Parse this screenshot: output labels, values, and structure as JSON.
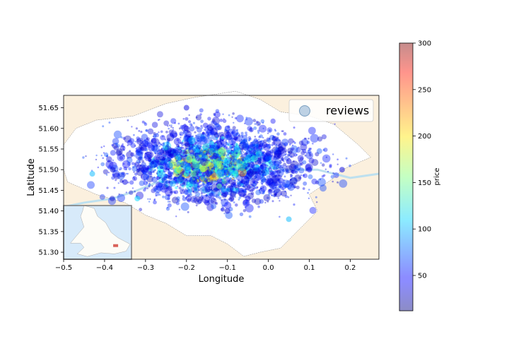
{
  "chart_data": {
    "type": "scatter",
    "title": "",
    "xlabel": "Longitude",
    "ylabel": "Latitude",
    "xlim": [
      -0.5,
      0.27
    ],
    "ylim": [
      51.283,
      51.68
    ],
    "xticks": [
      -0.5,
      -0.4,
      -0.3,
      -0.2,
      -0.1,
      0.0,
      0.1,
      0.2
    ],
    "xtick_labels": [
      "−0.5",
      "−0.4",
      "−0.3",
      "−0.2",
      "−0.1",
      "0.0",
      "0.1",
      "0.2"
    ],
    "yticks": [
      51.3,
      51.35,
      51.4,
      51.45,
      51.5,
      51.55,
      51.6,
      51.65
    ],
    "ytick_labels": [
      "51.30",
      "51.35",
      "51.40",
      "51.45",
      "51.50",
      "51.55",
      "51.60",
      "51.65"
    ],
    "legend": {
      "label": "reviews",
      "placement": "upper right"
    },
    "colorbar": {
      "label": "price",
      "range": [
        12,
        300
      ],
      "ticks": [
        50,
        100,
        150,
        200,
        250,
        300
      ],
      "tick_labels": [
        "50",
        "100",
        "150",
        "200",
        "250",
        "300"
      ],
      "colormap": "jet"
    },
    "background_map": {
      "land_color": "#fbf0de",
      "city_color": "#ffffff",
      "water_color": "#bde0ef"
    },
    "inset_map": {
      "placement": "lower left",
      "sea_color": "#d7eafa",
      "land_color": "#fdfcf7",
      "marker_color": "#d9625a"
    },
    "series": [
      {
        "points": [
          {
            "x": -0.14,
            "y": 51.51,
            "price": 190
          },
          {
            "x": -0.16,
            "y": 51.5,
            "price": 170
          },
          {
            "x": -0.12,
            "y": 51.515,
            "price": 160
          },
          {
            "x": -0.18,
            "y": 51.52,
            "price": 140
          },
          {
            "x": -0.2,
            "y": 51.49,
            "price": 120
          },
          {
            "x": -0.1,
            "y": 51.52,
            "price": 110
          },
          {
            "x": -0.05,
            "y": 51.53,
            "price": 95
          },
          {
            "x": -0.08,
            "y": 51.49,
            "price": 130
          },
          {
            "x": -0.22,
            "y": 51.53,
            "price": 100
          },
          {
            "x": -0.24,
            "y": 51.51,
            "price": 80
          },
          {
            "x": -0.03,
            "y": 51.55,
            "price": 60
          },
          {
            "x": 0.0,
            "y": 51.54,
            "price": 40
          },
          {
            "x": 0.03,
            "y": 51.55,
            "price": 35
          },
          {
            "x": 0.05,
            "y": 51.52,
            "price": 40
          },
          {
            "x": -0.3,
            "y": 51.5,
            "price": 45
          },
          {
            "x": -0.35,
            "y": 51.47,
            "price": 40
          },
          {
            "x": -0.38,
            "y": 51.5,
            "price": 35
          },
          {
            "x": -0.28,
            "y": 51.57,
            "price": 45
          },
          {
            "x": -0.2,
            "y": 51.6,
            "price": 40
          },
          {
            "x": -0.1,
            "y": 51.6,
            "price": 55
          },
          {
            "x": -0.15,
            "y": 51.42,
            "price": 40
          },
          {
            "x": -0.1,
            "y": 51.4,
            "price": 38
          },
          {
            "x": -0.05,
            "y": 51.43,
            "price": 45
          },
          {
            "x": 0.1,
            "y": 51.5,
            "price": 40
          },
          {
            "x": 0.18,
            "y": 51.5,
            "price": 38
          },
          {
            "x": 0.05,
            "y": 51.38,
            "price": 100
          },
          {
            "x": -0.2,
            "y": 51.65,
            "price": 40
          },
          {
            "x": -0.32,
            "y": 51.43,
            "price": 110
          },
          {
            "x": -0.43,
            "y": 51.49,
            "price": 100
          },
          {
            "x": -0.12,
            "y": 51.46,
            "price": 150
          }
        ]
      }
    ]
  }
}
